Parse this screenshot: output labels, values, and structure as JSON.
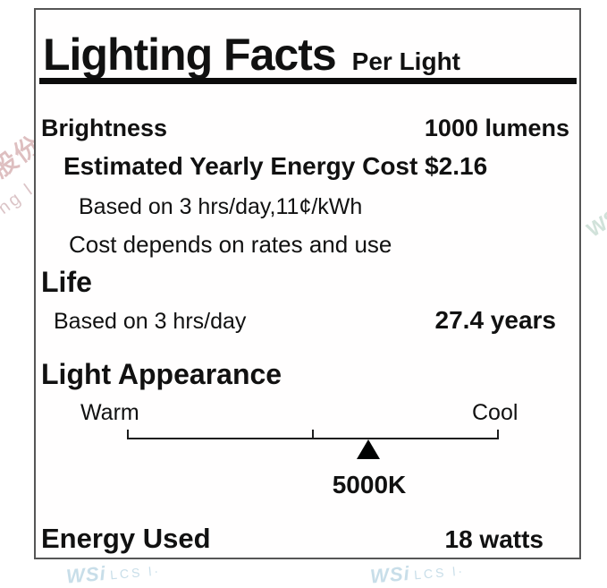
{
  "colors": {
    "text": "#111111",
    "box_border": "#565656",
    "thick_rule": "#0c0c0c",
    "watermark_blue": "#c6dde8",
    "watermark_pink": "#d9b4b6",
    "watermark_green": "#cddfd7"
  },
  "header": {
    "title": "Lighting Facts",
    "subtitle": "Per Light"
  },
  "brightness": {
    "label": "Brightness",
    "value": "1000 lumens"
  },
  "energy_cost": {
    "heading": "Estimated Yearly Energy Cost $2.16",
    "basis": "Based on 3 hrs/day,11¢/kWh",
    "note": "Cost depends on rates and use"
  },
  "life": {
    "heading": "Life",
    "basis": "Based on 3 hrs/day",
    "value": "27.4 years"
  },
  "light_appearance": {
    "heading": "Light Appearance",
    "warm_label": "Warm",
    "cool_label": "Cool",
    "temperature": "5000K",
    "marker_position_pct": 65
  },
  "energy_used": {
    "label": "Energy Used",
    "value": "18 watts"
  },
  "watermarks": {
    "left_cjk": "股份",
    "left_latin": "ng l",
    "right": "WS",
    "bottom_left_big": "WSi",
    "bottom_left_small": "LCS l·",
    "bottom_right_big": "WSi",
    "bottom_right_small": "LCS l·"
  }
}
